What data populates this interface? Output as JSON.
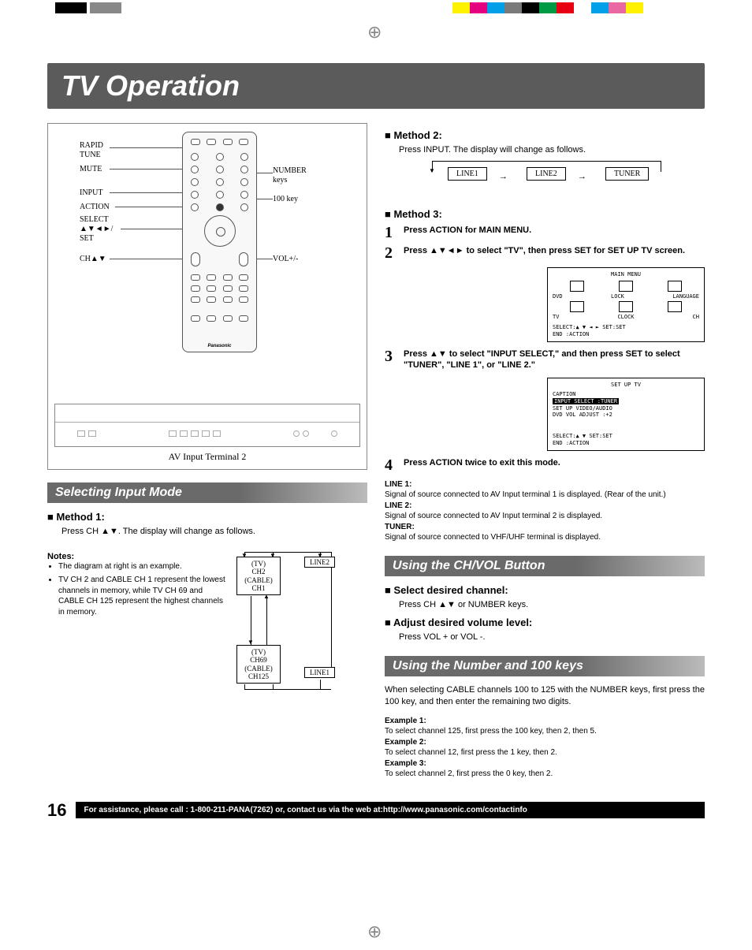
{
  "title": "TV Operation",
  "page_number": "16",
  "footer_text": "For assistance, please call : 1-800-211-PANA(7262) or, contact us via the web at:http://www.panasonic.com/contactinfo",
  "color_bars": [
    "#fff200",
    "#e4007f",
    "#00a0e9",
    "#7a7a7a",
    "#000000",
    "#009944",
    "#e60012",
    "#ffffff",
    "#00a1e9",
    "#ea68a2",
    "#fff100"
  ],
  "remote": {
    "labels_left": [
      "RAPID",
      "TUNE",
      "MUTE",
      "INPUT",
      "ACTION",
      "SELECT",
      "▲▼◄►/",
      "SET",
      "CH▲▼"
    ],
    "labels_right": [
      "NUMBER",
      "keys",
      "100 key",
      "VOL+/-"
    ],
    "brand": "Panasonic",
    "av_terminal": "AV Input Terminal 2"
  },
  "left_column": {
    "section1_title": "Selecting Input Mode",
    "method1_head": "■ Method 1:",
    "method1_text": "Press CH ▲▼. The display will change as follows.",
    "notes_head": "Notes:",
    "note1": "The diagram at right is an example.",
    "note2": "TV CH 2 and CABLE CH 1 represent the lowest channels in memory, while TV CH 69 and CABLE CH 125 represent the highest channels in memory.",
    "ch_box_top": "(TV)\nCH2\n(CABLE)\nCH1",
    "ch_box_bot": "(TV)\nCH69\n(CABLE)\nCH125",
    "line2_box": "LINE2",
    "line1_box": "LINE1"
  },
  "right_column": {
    "method2_head": "■ Method 2:",
    "method2_text": "Press INPUT. The display will change as follows.",
    "flow": {
      "b1": "LINE1",
      "b2": "LINE2",
      "b3": "TUNER"
    },
    "method3_head": "■ Method 3:",
    "step1": "Press ACTION for MAIN MENU.",
    "step2": "Press ▲▼◄► to select \"TV\", then press SET for SET UP TV screen.",
    "step3": "Press ▲▼ to select \"INPUT SELECT,\" and then press SET to select \"TUNER\", \"LINE 1\", or \"LINE 2.\"",
    "step4": "Press ACTION twice to exit this mode.",
    "osd1": {
      "title": "MAIN MENU",
      "row1": [
        "DVD",
        "LOCK",
        "LANGUAGE"
      ],
      "row2": [
        "TV",
        "CLOCK",
        "CH"
      ],
      "footer1": "SELECT:▲ ▼ ◄ ►   SET:SET",
      "footer2": "END   :ACTION"
    },
    "osd2": {
      "title": "SET UP TV",
      "l1": "CAPTION",
      "l2": "INPUT SELECT   :TUNER",
      "l3": "SET UP VIDEO/AUDIO",
      "l4": "DVD VOL ADJUST :+2",
      "footer1": "SELECT:▲ ▼        SET:SET",
      "footer2": "END   :ACTION"
    },
    "defs": {
      "l1h": "LINE 1:",
      "l1t": "Signal of source connected to AV Input terminal 1 is displayed. (Rear of the unit.)",
      "l2h": "LINE 2:",
      "l2t": "Signal of source connected to AV Input terminal 2 is displayed.",
      "tnh": "TUNER:",
      "tnt": "Signal of source connected to VHF/UHF terminal is displayed."
    },
    "section2_title": "Using the CH/VOL Button",
    "sel_ch_head": "■ Select desired channel:",
    "sel_ch_text": "Press CH ▲▼ or NUMBER keys.",
    "adj_vol_head": "■ Adjust desired volume level:",
    "adj_vol_text": "Press VOL + or VOL -.",
    "section3_title": "Using the Number and 100 keys",
    "num_intro": "When selecting CABLE channels 100 to 125 with the NUMBER keys, first press the 100 key, and then enter the remaining two digits.",
    "ex1h": "Example 1:",
    "ex1t": "To select channel 125, first press the 100 key, then 2, then 5.",
    "ex2h": "Example 2:",
    "ex2t": "To select channel 12, first press the 1 key, then 2.",
    "ex3h": "Example 3:",
    "ex3t": "To select channel 2, first press the 0 key, then 2."
  }
}
